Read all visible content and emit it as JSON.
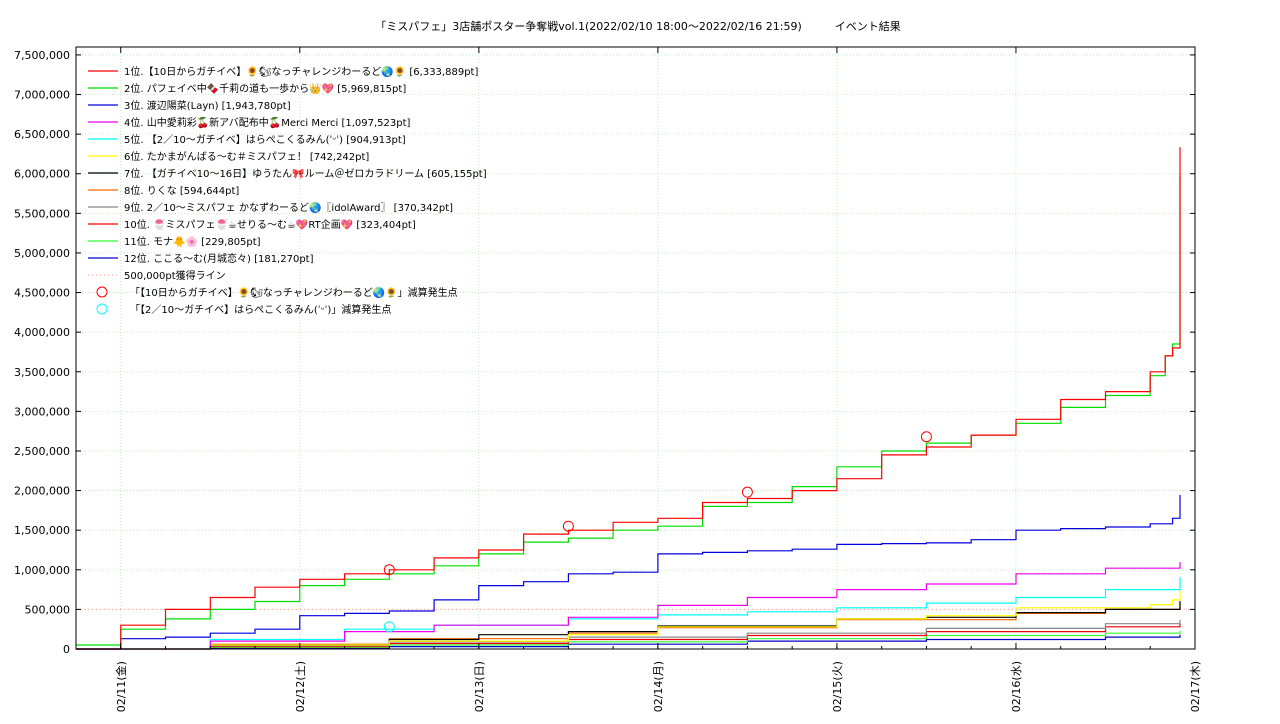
{
  "chart_data": {
    "type": "line",
    "title": "「ミスパフェ」3店舗ポスター争奪戦vol.1(2022/02/10 18:00～2022/02/16 21:59)　　　イベント結果",
    "xlabel": "",
    "ylabel": "",
    "x_ticks": [
      "02/11(金)",
      "02/12(土)",
      "02/13(日)",
      "02/14(月)",
      "02/15(火)",
      "02/16(水)",
      "02/17(木)"
    ],
    "xlim": [
      "2022-02-10 18:00",
      "2022-02-17 00:00"
    ],
    "ylim": [
      0,
      7600000
    ],
    "y_ticks": [
      "0",
      "500,000",
      "1,000,000",
      "1,500,000",
      "2,000,000",
      "2,500,000",
      "3,000,000",
      "3,500,000",
      "4,000,000",
      "4,500,000",
      "5,000,000",
      "5,500,000",
      "6,000,000",
      "6,500,000",
      "7,000,000",
      "7,500,000"
    ],
    "grid": true,
    "legend_position": "top-left",
    "series": [
      {
        "name": "1位.【10日からガチイベ】🌻🐿なっチャレンジわーるど🌏🌻 [6,333,889pt]",
        "color": "#ff0000",
        "x": [
          "2022-02-10 18:00",
          "2022-02-11 00:00",
          "2022-02-11 06:00",
          "2022-02-11 12:00",
          "2022-02-11 18:00",
          "2022-02-12 00:00",
          "2022-02-12 06:00",
          "2022-02-12 12:00",
          "2022-02-12 18:00",
          "2022-02-13 00:00",
          "2022-02-13 06:00",
          "2022-02-13 12:00",
          "2022-02-13 18:00",
          "2022-02-14 00:00",
          "2022-02-14 06:00",
          "2022-02-14 12:00",
          "2022-02-14 18:00",
          "2022-02-15 00:00",
          "2022-02-15 06:00",
          "2022-02-15 12:00",
          "2022-02-15 18:00",
          "2022-02-16 00:00",
          "2022-02-16 06:00",
          "2022-02-16 12:00",
          "2022-02-16 18:00",
          "2022-02-16 20:00",
          "2022-02-16 21:00",
          "2022-02-16 21:59"
        ],
        "y": [
          0,
          300000,
          500000,
          650000,
          780000,
          880000,
          950000,
          1000000,
          1150000,
          1250000,
          1450000,
          1500000,
          1600000,
          1650000,
          1850000,
          1900000,
          2000000,
          2150000,
          2450000,
          2550000,
          2700000,
          2900000,
          3150000,
          3250000,
          3500000,
          3700000,
          3800000,
          6333889
        ]
      },
      {
        "name": "2位. パフェイベ中🍫千莉の道も一歩から👑💖 [5,969,815pt]",
        "color": "#00dd00",
        "x": [
          "2022-02-10 18:00",
          "2022-02-11 00:00",
          "2022-02-11 06:00",
          "2022-02-11 12:00",
          "2022-02-11 18:00",
          "2022-02-12 00:00",
          "2022-02-12 06:00",
          "2022-02-12 12:00",
          "2022-02-12 18:00",
          "2022-02-13 00:00",
          "2022-02-13 06:00",
          "2022-02-13 12:00",
          "2022-02-13 18:00",
          "2022-02-14 00:00",
          "2022-02-14 06:00",
          "2022-02-14 12:00",
          "2022-02-14 18:00",
          "2022-02-15 00:00",
          "2022-02-15 06:00",
          "2022-02-15 12:00",
          "2022-02-15 18:00",
          "2022-02-16 00:00",
          "2022-02-16 06:00",
          "2022-02-16 12:00",
          "2022-02-16 18:00",
          "2022-02-16 20:00",
          "2022-02-16 21:00",
          "2022-02-16 21:59"
        ],
        "y": [
          50000,
          250000,
          380000,
          500000,
          600000,
          800000,
          880000,
          950000,
          1050000,
          1200000,
          1350000,
          1400000,
          1500000,
          1550000,
          1800000,
          1850000,
          2050000,
          2300000,
          2500000,
          2600000,
          2700000,
          2850000,
          3050000,
          3200000,
          3450000,
          3700000,
          3850000,
          5969815
        ]
      },
      {
        "name": "3位. 渡辺陽菜(Layn) [1,943,780pt]",
        "color": "#0000dd",
        "x": [
          "2022-02-10 18:00",
          "2022-02-11 00:00",
          "2022-02-11 06:00",
          "2022-02-11 12:00",
          "2022-02-11 18:00",
          "2022-02-12 00:00",
          "2022-02-12 06:00",
          "2022-02-12 12:00",
          "2022-02-12 18:00",
          "2022-02-13 00:00",
          "2022-02-13 06:00",
          "2022-02-13 12:00",
          "2022-02-13 18:00",
          "2022-02-14 00:00",
          "2022-02-14 06:00",
          "2022-02-14 12:00",
          "2022-02-14 18:00",
          "2022-02-15 00:00",
          "2022-02-15 06:00",
          "2022-02-15 12:00",
          "2022-02-15 18:00",
          "2022-02-16 00:00",
          "2022-02-16 06:00",
          "2022-02-16 12:00",
          "2022-02-16 18:00",
          "2022-02-16 21:00",
          "2022-02-16 21:59"
        ],
        "y": [
          0,
          130000,
          150000,
          200000,
          250000,
          420000,
          450000,
          480000,
          620000,
          800000,
          850000,
          950000,
          970000,
          1200000,
          1220000,
          1240000,
          1260000,
          1320000,
          1330000,
          1340000,
          1380000,
          1500000,
          1520000,
          1540000,
          1580000,
          1650000,
          1943780
        ]
      },
      {
        "name": "4位. 山中愛莉彩🍒新アバ配布中🍒Merci Merci [1,097,523pt]",
        "color": "#ee00ee",
        "x": [
          "2022-02-10 18:00",
          "2022-02-11 12:00",
          "2022-02-12 06:00",
          "2022-02-12 18:00",
          "2022-02-13 12:00",
          "2022-02-14 00:00",
          "2022-02-14 12:00",
          "2022-02-15 00:00",
          "2022-02-15 12:00",
          "2022-02-16 00:00",
          "2022-02-16 12:00",
          "2022-02-16 21:59"
        ],
        "y": [
          0,
          100000,
          220000,
          300000,
          400000,
          550000,
          650000,
          750000,
          820000,
          950000,
          1020000,
          1097523
        ]
      },
      {
        "name": "5位. 【2／10～ガチイベ】はらぺこくるみん(ˈᵕˈ) [904,913pt]",
        "color": "#00ffff",
        "x": [
          "2022-02-10 18:00",
          "2022-02-11 12:00",
          "2022-02-12 06:00",
          "2022-02-12 18:00",
          "2022-02-13 12:00",
          "2022-02-14 00:00",
          "2022-02-14 12:00",
          "2022-02-15 00:00",
          "2022-02-15 12:00",
          "2022-02-16 00:00",
          "2022-02-16 12:00",
          "2022-02-16 21:59"
        ],
        "y": [
          0,
          120000,
          250000,
          300000,
          380000,
          430000,
          470000,
          520000,
          580000,
          650000,
          750000,
          904913
        ]
      },
      {
        "name": "6位. たかまがんばる～む＃ミスパフェ！ [742,242pt]",
        "color": "#ffff00",
        "x": [
          "2022-02-10 18:00",
          "2022-02-11 12:00",
          "2022-02-12 12:00",
          "2022-02-13 12:00",
          "2022-02-14 00:00",
          "2022-02-15 00:00",
          "2022-02-15 12:00",
          "2022-02-16 00:00",
          "2022-02-16 18:00",
          "2022-02-16 21:00",
          "2022-02-16 21:59"
        ],
        "y": [
          0,
          50000,
          100000,
          180000,
          280000,
          380000,
          420000,
          520000,
          560000,
          620000,
          742242
        ]
      },
      {
        "name": "7位. 【ガチイベ10～16日】ゆうたん🎀ルーム＠ゼロカラドリーム [605,155pt]",
        "color": "#000000",
        "x": [
          "2022-02-10 18:00",
          "2022-02-11 12:00",
          "2022-02-12 12:00",
          "2022-02-13 00:00",
          "2022-02-13 12:00",
          "2022-02-14 00:00",
          "2022-02-15 00:00",
          "2022-02-15 12:00",
          "2022-02-16 00:00",
          "2022-02-16 12:00",
          "2022-02-16 21:59"
        ],
        "y": [
          0,
          50000,
          120000,
          180000,
          220000,
          290000,
          380000,
          400000,
          460000,
          500000,
          605155
        ]
      },
      {
        "name": "8位. りくな [594,644pt]",
        "color": "#ff6600",
        "x": [
          "2022-02-10 18:00",
          "2022-02-11 12:00",
          "2022-02-12 12:00",
          "2022-02-13 12:00",
          "2022-02-14 00:00",
          "2022-02-15 00:00",
          "2022-02-16 00:00",
          "2022-02-16 12:00",
          "2022-02-16 21:59"
        ],
        "y": [
          0,
          60000,
          130000,
          200000,
          270000,
          370000,
          450000,
          500000,
          594644
        ]
      },
      {
        "name": "9位. 2／10～ミスパフェ かなずわーるど🌏〖idolAward〗 [370,342pt]",
        "color": "#888888",
        "x": [
          "2022-02-10 18:00",
          "2022-02-11 12:00",
          "2022-02-12 12:00",
          "2022-02-13 12:00",
          "2022-02-14 12:00",
          "2022-02-15 12:00",
          "2022-02-16 12:00",
          "2022-02-16 21:59"
        ],
        "y": [
          0,
          40000,
          90000,
          150000,
          200000,
          260000,
          320000,
          370342
        ]
      },
      {
        "name": "10位. 🍧ミスパフェ🍧☕せりる〜む☕💖RT企画💖 [323,404pt]",
        "color": "#ee0000",
        "x": [
          "2022-02-10 18:00",
          "2022-02-11 12:00",
          "2022-02-12 12:00",
          "2022-02-13 12:00",
          "2022-02-14 12:00",
          "2022-02-15 12:00",
          "2022-02-16 12:00",
          "2022-02-16 21:59"
        ],
        "y": [
          0,
          30000,
          70000,
          120000,
          170000,
          220000,
          280000,
          323404
        ]
      },
      {
        "name": "11位. モナ🐥🌸 [229,805pt]",
        "color": "#33ff33",
        "x": [
          "2022-02-10 18:00",
          "2022-02-11 12:00",
          "2022-02-12 12:00",
          "2022-02-13 12:00",
          "2022-02-14 12:00",
          "2022-02-15 12:00",
          "2022-02-16 12:00",
          "2022-02-16 21:59"
        ],
        "y": [
          0,
          20000,
          50000,
          90000,
          130000,
          170000,
          200000,
          229805
        ]
      },
      {
        "name": "12位. ここる〜む(月城恋々) [181,270pt]",
        "color": "#0000cc",
        "x": [
          "2022-02-10 18:00",
          "2022-02-11 12:00",
          "2022-02-12 12:00",
          "2022-02-13 12:00",
          "2022-02-14 12:00",
          "2022-02-15 12:00",
          "2022-02-16 12:00",
          "2022-02-16 21:59"
        ],
        "y": [
          0,
          10000,
          30000,
          60000,
          100000,
          120000,
          150000,
          181270
        ]
      }
    ],
    "reference_line": {
      "name": "500,000pt獲得ライン",
      "y": 500000,
      "color": "#ff9999"
    },
    "markers": [
      {
        "name": "「【10日からガチイベ】🌻🐿なっチャレンジわーるど🌏🌻」減算発生点",
        "color": "#ff0000",
        "points": [
          {
            "x": "2022-02-12 12:00",
            "y": 1000000
          },
          {
            "x": "2022-02-13 12:00",
            "y": 1550000
          },
          {
            "x": "2022-02-14 12:00",
            "y": 1980000
          },
          {
            "x": "2022-02-15 12:00",
            "y": 2680000
          }
        ]
      },
      {
        "name": "「【2／10～ガチイベ】はらぺこくるみん(ˈᵕˈ)」減算発生点",
        "color": "#00ffff",
        "points": [
          {
            "x": "2022-02-12 12:00",
            "y": 280000
          }
        ]
      }
    ]
  }
}
